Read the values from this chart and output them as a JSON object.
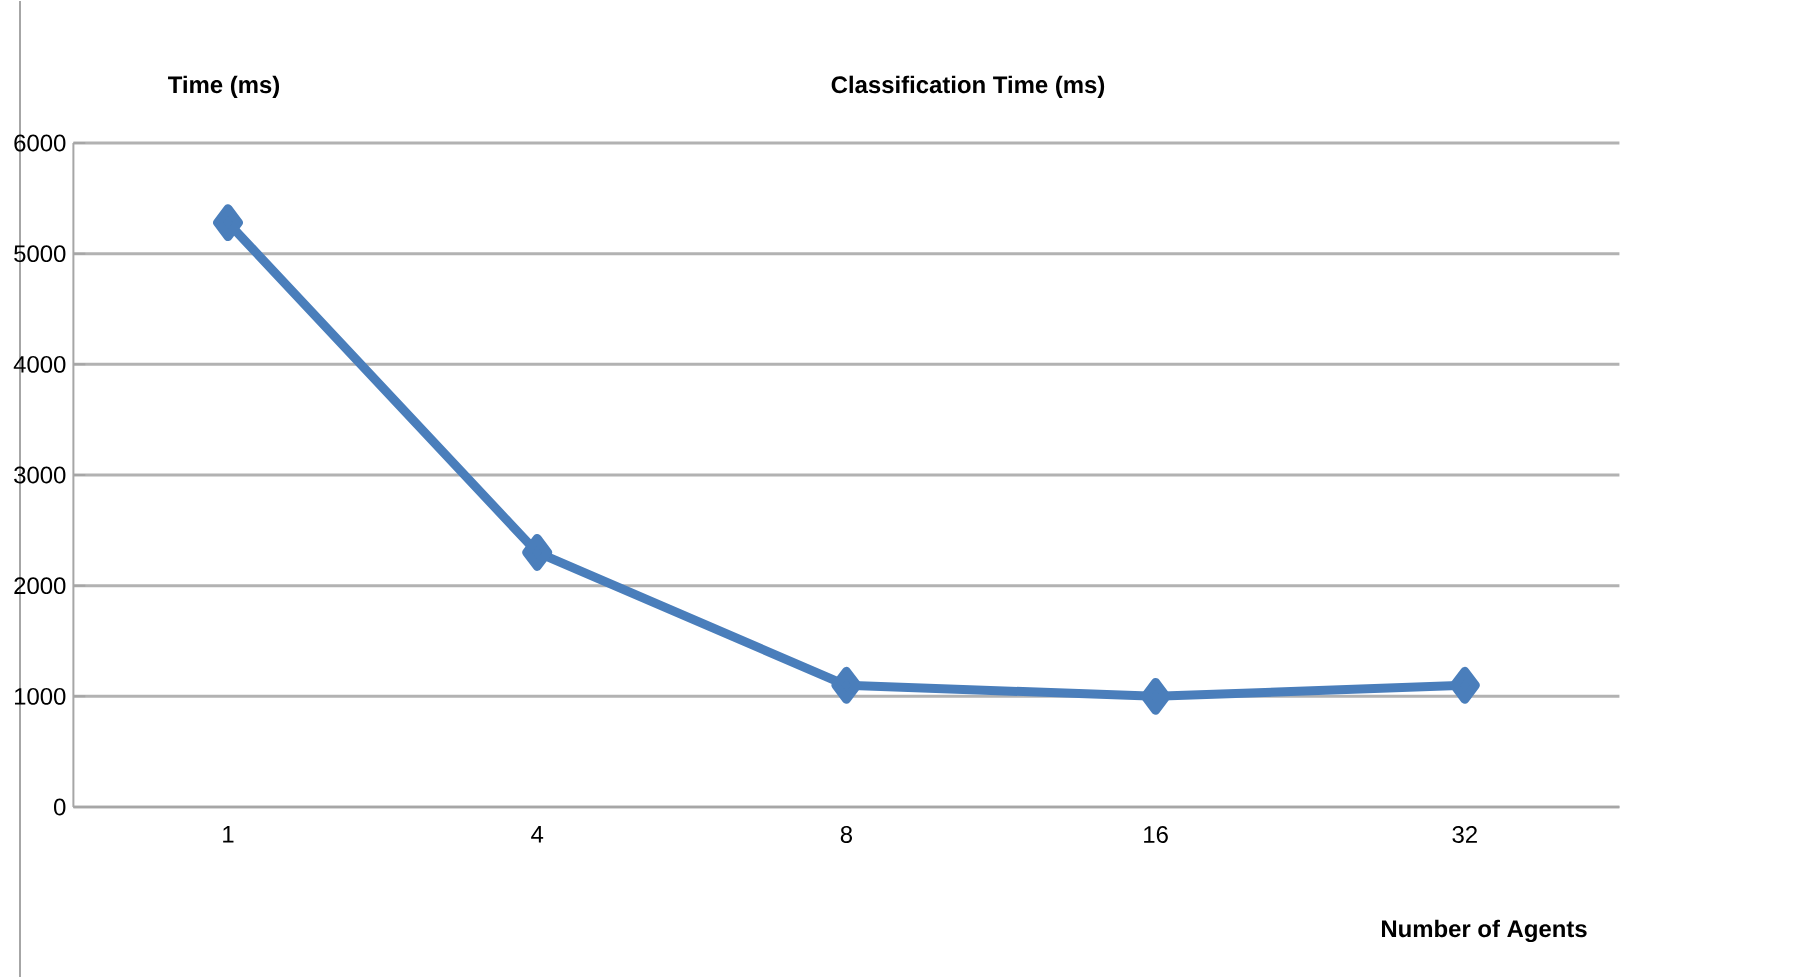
{
  "chart_data": {
    "type": "line",
    "title": "Classification Time (ms)",
    "xlabel": "Number of Agents",
    "ylabel": "Time (ms)",
    "categories": [
      "1",
      "4",
      "8",
      "16",
      "32"
    ],
    "series": [
      {
        "color": "#4a7ebb",
        "values": [
          5280,
          2300,
          1100,
          1000,
          1100
        ]
      }
    ],
    "ylim": [
      0,
      6000
    ],
    "yticks": [
      0,
      1000,
      2000,
      3000,
      4000,
      5000,
      6000
    ],
    "grid": "y",
    "marker": "diamond",
    "line_style": "solid"
  }
}
